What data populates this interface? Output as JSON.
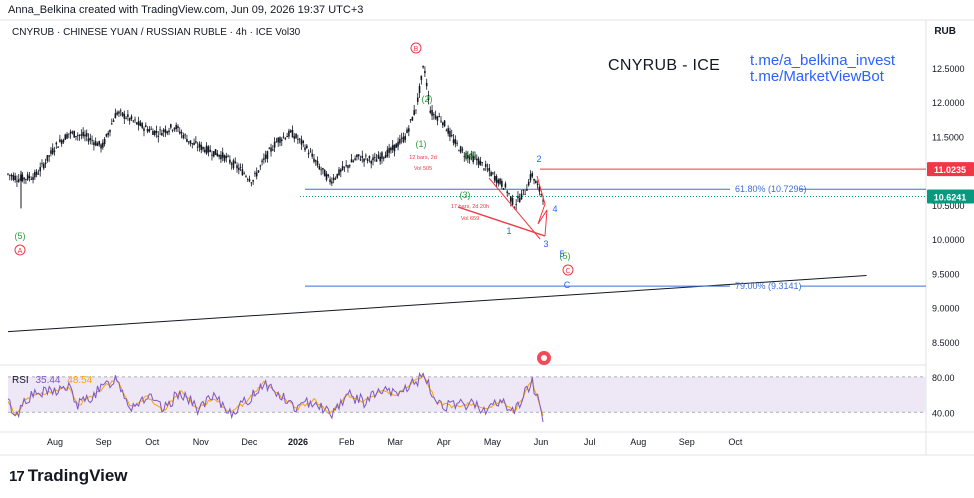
{
  "header": {
    "credit": "Anna_Belkina created with TradingView.com, Jun 09, 2026 19:37 UTC+3",
    "symbol_line": "CNYRUB · CHINESE YUAN / RUSSIAN RUBLE · 4h · ICE  Vol30",
    "currency": "RUB"
  },
  "annotation_text": {
    "title": "CNYRUB - ICE",
    "link1": "t.me/a_belkina_invest",
    "link2": "t.me/MarketViewBot"
  },
  "rsi": {
    "label": "RSI",
    "value1": "35.44",
    "value2": "48.54",
    "levels": [
      "80.00",
      "40.00"
    ]
  },
  "brand": {
    "name": "TradingView"
  },
  "colors": {
    "candle": "#131722",
    "wave_green": "#2e9d3a",
    "wave_red": "#f23645",
    "wave_blue": "#2962ff",
    "fib_blue": "#3d6fd6",
    "rsi_line": "#7e57c2",
    "rsi_signal": "#f7a600",
    "rsi_band": "#ede7f6"
  },
  "chart_data": {
    "type": "line",
    "symbol": "CNYRUB",
    "interval": "4h",
    "x_ticks": [
      "Aug",
      "Sep",
      "Oct",
      "Nov",
      "Dec",
      "2026",
      "Feb",
      "Mar",
      "Apr",
      "May",
      "Jun",
      "Jul",
      "Aug",
      "Sep",
      "Oct"
    ],
    "y_ticks": [
      "12.5000",
      "12.0000",
      "11.5000",
      "11.0000",
      "10.5000",
      "10.0000",
      "9.5000",
      "9.0000",
      "8.5000"
    ],
    "ylim": [
      8.3,
      13.2
    ],
    "price_path": [
      {
        "x": 0.0,
        "y": 10.95
      },
      {
        "x": 0.2,
        "y": 10.88
      },
      {
        "x": 0.35,
        "y": 10.9
      },
      {
        "x": 0.5,
        "y": 10.93
      },
      {
        "x": 0.65,
        "y": 11.1
      },
      {
        "x": 0.85,
        "y": 11.35
      },
      {
        "x": 1.1,
        "y": 11.55
      },
      {
        "x": 1.4,
        "y": 11.5
      },
      {
        "x": 1.7,
        "y": 11.35
      },
      {
        "x": 1.95,
        "y": 11.85
      },
      {
        "x": 2.1,
        "y": 11.8
      },
      {
        "x": 2.4,
        "y": 11.65
      },
      {
        "x": 2.7,
        "y": 11.55
      },
      {
        "x": 3.0,
        "y": 11.65
      },
      {
        "x": 3.3,
        "y": 11.4
      },
      {
        "x": 3.6,
        "y": 11.3
      },
      {
        "x": 3.9,
        "y": 11.2
      },
      {
        "x": 4.2,
        "y": 11.0
      },
      {
        "x": 4.4,
        "y": 10.85
      },
      {
        "x": 4.6,
        "y": 11.15
      },
      {
        "x": 4.85,
        "y": 11.45
      },
      {
        "x": 5.1,
        "y": 11.55
      },
      {
        "x": 5.35,
        "y": 11.35
      },
      {
        "x": 5.6,
        "y": 11.05
      },
      {
        "x": 5.8,
        "y": 10.85
      },
      {
        "x": 6.0,
        "y": 11.0
      },
      {
        "x": 6.3,
        "y": 11.2
      },
      {
        "x": 6.6,
        "y": 11.15
      },
      {
        "x": 6.9,
        "y": 11.3
      },
      {
        "x": 7.15,
        "y": 11.5
      },
      {
        "x": 7.35,
        "y": 11.95
      },
      {
        "x": 7.48,
        "y": 12.55
      },
      {
        "x": 7.6,
        "y": 11.85
      },
      {
        "x": 7.8,
        "y": 11.75
      },
      {
        "x": 8.0,
        "y": 11.45
      },
      {
        "x": 8.2,
        "y": 11.25
      },
      {
        "x": 8.45,
        "y": 11.15
      },
      {
        "x": 8.7,
        "y": 10.95
      },
      {
        "x": 8.95,
        "y": 10.75
      },
      {
        "x": 9.1,
        "y": 10.5
      },
      {
        "x": 9.3,
        "y": 10.7
      },
      {
        "x": 9.42,
        "y": 10.95
      },
      {
        "x": 9.55,
        "y": 10.72
      },
      {
        "x": 9.62,
        "y": 10.62
      }
    ],
    "fib_levels": [
      {
        "label": "61.80% (10.7296)",
        "value": 10.7296
      },
      {
        "label": "79.00% (9.3141)",
        "value": 9.3141
      }
    ],
    "price_tags": [
      {
        "label": "11.0235",
        "value": 11.0235,
        "color": "#f23645"
      },
      {
        "label": "10.6241",
        "value": 10.6241,
        "color": "#089981"
      }
    ],
    "trendline": {
      "from": {
        "x": 0.0,
        "y": 8.65
      },
      "to": {
        "x": 16.7,
        "y": 9.47
      }
    },
    "wave_labels": {
      "green": [
        "(5)",
        "(1)",
        "(2)",
        "(3)",
        "(4)",
        "(5)"
      ],
      "red_circled": [
        "A",
        "B",
        "C"
      ],
      "blue": [
        "1",
        "2",
        "3",
        "4",
        "5",
        "C"
      ]
    },
    "annotations": [
      "12 bars, 2d",
      "Vol 505",
      "17 bars, 2d 20h",
      "Vol 659"
    ],
    "rsi_path": [
      {
        "x": 0.0,
        "y": 52
      },
      {
        "x": 0.15,
        "y": 35
      },
      {
        "x": 0.3,
        "y": 55
      },
      {
        "x": 0.5,
        "y": 60
      },
      {
        "x": 0.8,
        "y": 64
      },
      {
        "x": 1.1,
        "y": 68
      },
      {
        "x": 1.25,
        "y": 48
      },
      {
        "x": 1.5,
        "y": 58
      },
      {
        "x": 1.95,
        "y": 79
      },
      {
        "x": 2.2,
        "y": 46
      },
      {
        "x": 2.5,
        "y": 58
      },
      {
        "x": 2.8,
        "y": 42
      },
      {
        "x": 3.1,
        "y": 64
      },
      {
        "x": 3.4,
        "y": 44
      },
      {
        "x": 3.7,
        "y": 56
      },
      {
        "x": 4.0,
        "y": 40
      },
      {
        "x": 4.3,
        "y": 52
      },
      {
        "x": 4.6,
        "y": 74
      },
      {
        "x": 4.9,
        "y": 58
      },
      {
        "x": 5.2,
        "y": 44
      },
      {
        "x": 5.5,
        "y": 54
      },
      {
        "x": 5.8,
        "y": 38
      },
      {
        "x": 6.1,
        "y": 60
      },
      {
        "x": 6.4,
        "y": 52
      },
      {
        "x": 6.7,
        "y": 64
      },
      {
        "x": 7.0,
        "y": 60
      },
      {
        "x": 7.3,
        "y": 74
      },
      {
        "x": 7.48,
        "y": 80
      },
      {
        "x": 7.7,
        "y": 52
      },
      {
        "x": 8.0,
        "y": 46
      },
      {
        "x": 8.3,
        "y": 50
      },
      {
        "x": 8.6,
        "y": 44
      },
      {
        "x": 8.9,
        "y": 52
      },
      {
        "x": 9.1,
        "y": 40
      },
      {
        "x": 9.3,
        "y": 62
      },
      {
        "x": 9.42,
        "y": 76
      },
      {
        "x": 9.55,
        "y": 50
      },
      {
        "x": 9.62,
        "y": 35
      }
    ]
  }
}
